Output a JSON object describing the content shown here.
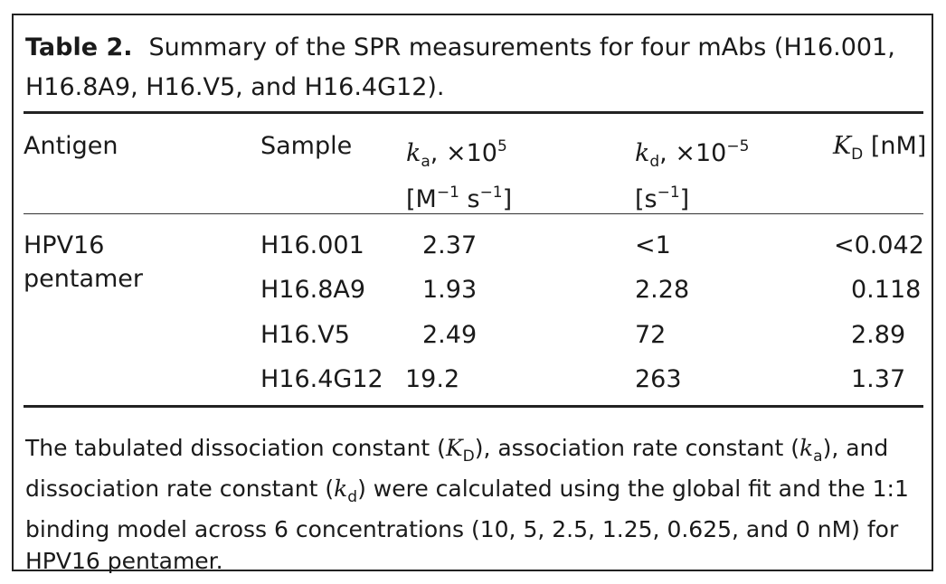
{
  "caption": {
    "label": "Table 2.",
    "text": "Summary of the SPR measurements for four mAbs (H16.001, H16.8A9, H16.V5, and H16.4G12)."
  },
  "headers": {
    "antigen": "Antigen",
    "sample": "Sample",
    "ka_symbol": "k",
    "ka_sub": "a",
    "ka_scale": ", ×10",
    "ka_exp": "5",
    "ka_unit_a": "[M",
    "ka_unit_a_exp": "−1",
    "ka_unit_b": " s",
    "ka_unit_b_exp": "−1",
    "ka_unit_close": "]",
    "kd_symbol": "k",
    "kd_sub": "d",
    "kd_scale": ", ×10",
    "kd_exp": "−5",
    "kd_unit": "[s",
    "kd_unit_exp": "−1",
    "kd_unit_close": "]",
    "KD_symbol": "K",
    "KD_sub": "D",
    "KD_unit": " [nM]"
  },
  "antigen": {
    "line1": "HPV16",
    "line2": "pentamer"
  },
  "rows": [
    {
      "sample": "H16.001",
      "ka": "2.37",
      "kd": "<1",
      "KD": "<0.042"
    },
    {
      "sample": "H16.8A9",
      "ka": "1.93",
      "kd": "2.28",
      "KD": "0.118"
    },
    {
      "sample": "H16.V5",
      "ka": "2.49",
      "kd": "72",
      "KD": "2.89"
    },
    {
      "sample": "H16.4G12",
      "ka": "19.2",
      "kd": "263",
      "KD": "1.37"
    }
  ],
  "footnote": {
    "p1": "The tabulated dissociation constant (",
    "s1": "K",
    "s1sub": "D",
    "p2": "), association rate constant (",
    "s2": "k",
    "s2sub": "a",
    "p3": "), and dissociation rate constant (",
    "s3": "k",
    "s3sub": "d",
    "p4": ") were calculated using the global fit and the 1:1 binding model across 6 concentrations (10, 5, 2.5, 1.25, 0.625, and 0 nM) for HPV16 pentamer."
  }
}
